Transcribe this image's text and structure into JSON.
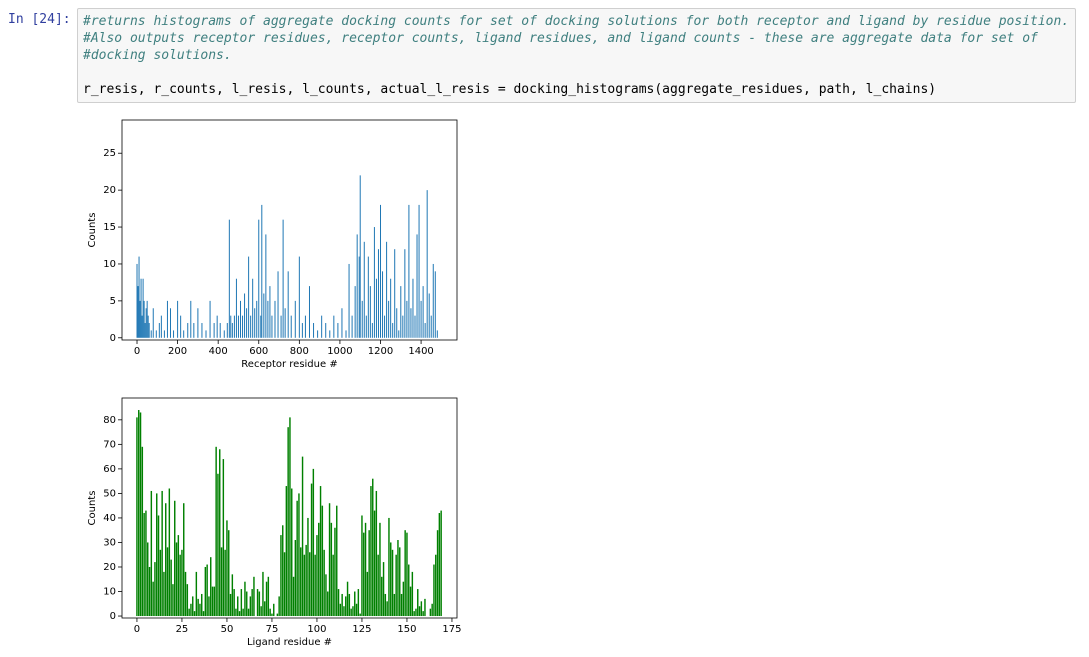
{
  "prompt": "In [24]:",
  "code": {
    "comments": [
      "#returns histograms of aggregate docking counts for set of docking solutions for both receptor and ligand by residue position.",
      "#Also outputs receptor residues, receptor counts, ligand residues, and ligand counts - these are aggregate data for set of",
      "#docking solutions."
    ],
    "statement": "r_resis, r_counts, l_resis, l_counts, actual_l_resis = docking_histograms(aggregate_residues, path, l_chains)"
  },
  "chart_data": [
    {
      "type": "bar",
      "xlabel": "Receptor residue #",
      "ylabel": "Counts",
      "color": "#1f77b4",
      "x": [
        0,
        5,
        10,
        15,
        20,
        25,
        30,
        35,
        40,
        45,
        50,
        55,
        60,
        70,
        80,
        95,
        110,
        120,
        135,
        150,
        165,
        180,
        200,
        215,
        230,
        250,
        265,
        280,
        300,
        320,
        340,
        360,
        380,
        395,
        410,
        430,
        445,
        455,
        462,
        470,
        480,
        490,
        500,
        510,
        520,
        530,
        540,
        550,
        560,
        570,
        580,
        590,
        600,
        610,
        615,
        625,
        635,
        645,
        655,
        665,
        680,
        695,
        710,
        720,
        730,
        745,
        760,
        780,
        800,
        815,
        830,
        850,
        870,
        890,
        910,
        930,
        950,
        970,
        990,
        1010,
        1030,
        1045,
        1060,
        1075,
        1085,
        1095,
        1100,
        1110,
        1120,
        1130,
        1140,
        1150,
        1160,
        1170,
        1180,
        1190,
        1200,
        1210,
        1220,
        1230,
        1240,
        1250,
        1260,
        1270,
        1280,
        1290,
        1300,
        1310,
        1320,
        1330,
        1340,
        1350,
        1360,
        1370,
        1380,
        1390,
        1400,
        1410,
        1420,
        1430,
        1440,
        1450,
        1460,
        1470,
        1480
      ],
      "values": [
        10,
        7,
        11,
        5,
        8,
        3,
        8,
        5,
        2,
        4,
        5,
        3,
        2,
        1,
        4,
        1,
        2,
        3,
        1,
        5,
        4,
        1,
        5,
        3,
        1,
        2,
        5,
        2,
        4,
        2,
        1,
        5,
        2,
        3,
        2,
        1,
        2,
        16,
        3,
        2,
        3,
        8,
        3,
        5,
        3,
        6,
        4,
        11,
        3,
        8,
        4,
        5,
        16,
        3,
        18,
        6,
        14,
        5,
        7,
        3,
        5,
        9,
        3,
        16,
        4,
        9,
        3,
        5,
        11,
        2,
        3,
        7,
        2,
        1,
        3,
        2,
        1,
        3,
        2,
        4,
        1,
        10,
        3,
        7,
        14,
        11,
        22,
        5,
        13,
        3,
        11,
        7,
        2,
        15,
        8,
        12,
        18,
        9,
        3,
        13,
        5,
        8,
        2,
        12,
        4,
        1,
        7,
        3,
        12,
        5,
        18,
        4,
        8,
        3,
        14,
        18,
        5,
        7,
        2,
        20,
        6,
        3,
        10,
        9,
        1
      ],
      "xlim": [
        -74,
        1577
      ],
      "ylim": [
        -0.3,
        29.5
      ],
      "xticks": [
        0,
        200,
        400,
        600,
        800,
        1000,
        1200,
        1400
      ],
      "yticks": [
        0,
        5,
        10,
        15,
        20,
        25
      ]
    },
    {
      "type": "bar",
      "xlabel": "Ligand residue #",
      "ylabel": "Counts",
      "color": "#008000",
      "x": [
        0,
        1,
        2,
        3,
        4,
        5,
        6,
        7,
        8,
        9,
        10,
        11,
        12,
        13,
        14,
        15,
        16,
        17,
        18,
        19,
        20,
        21,
        22,
        23,
        24,
        25,
        26,
        27,
        28,
        29,
        30,
        31,
        32,
        33,
        34,
        35,
        36,
        37,
        38,
        39,
        40,
        41,
        42,
        43,
        44,
        45,
        46,
        47,
        48,
        49,
        50,
        51,
        52,
        53,
        54,
        55,
        56,
        57,
        58,
        59,
        60,
        61,
        62,
        63,
        64,
        65,
        66,
        67,
        68,
        69,
        70,
        71,
        72,
        73,
        74,
        75,
        76,
        77,
        78,
        79,
        80,
        81,
        82,
        83,
        84,
        85,
        86,
        87,
        88,
        89,
        90,
        91,
        92,
        93,
        94,
        95,
        96,
        97,
        98,
        99,
        100,
        101,
        102,
        103,
        104,
        105,
        106,
        107,
        108,
        109,
        110,
        111,
        112,
        113,
        114,
        115,
        116,
        117,
        118,
        119,
        120,
        121,
        122,
        123,
        124,
        125,
        126,
        127,
        128,
        129,
        130,
        131,
        132,
        133,
        134,
        135,
        136,
        137,
        138,
        139,
        140,
        141,
        142,
        143,
        144,
        145,
        146,
        147,
        148,
        149,
        150,
        151,
        152,
        153,
        154,
        155,
        156,
        157,
        158,
        159,
        160,
        161,
        162,
        163,
        164,
        165,
        166,
        167,
        168,
        169
      ],
      "values": [
        81,
        84,
        83,
        69,
        42,
        43,
        30,
        20,
        51,
        14,
        22,
        50,
        41,
        27,
        51,
        18,
        46,
        28,
        52,
        23,
        13,
        47,
        30,
        33,
        25,
        27,
        46,
        18,
        13,
        3,
        5,
        8,
        2,
        18,
        7,
        5,
        9,
        2,
        20,
        21,
        8,
        24,
        12,
        12,
        69,
        58,
        68,
        28,
        64,
        27,
        39,
        35,
        9,
        17,
        11,
        3,
        8,
        2,
        11,
        3,
        14,
        10,
        3,
        8,
        11,
        16,
        0,
        11,
        10,
        4,
        18,
        6,
        14,
        16,
        3,
        1,
        5,
        0,
        1,
        8,
        33,
        37,
        26,
        53,
        77,
        81,
        52,
        16,
        31,
        47,
        50,
        28,
        65,
        25,
        29,
        40,
        26,
        54,
        60,
        25,
        33,
        38,
        53,
        45,
        27,
        17,
        10,
        46,
        38,
        25,
        36,
        45,
        11,
        5,
        9,
        4,
        8,
        14,
        9,
        3,
        4,
        10,
        5,
        11,
        1,
        41,
        34,
        38,
        18,
        35,
        53,
        56,
        43,
        51,
        25,
        38,
        16,
        22,
        9,
        6,
        40,
        30,
        27,
        9,
        25,
        31,
        28,
        9,
        14,
        35,
        34,
        21,
        12,
        18,
        2,
        3,
        11,
        4,
        6,
        2,
        7,
        0,
        0,
        3,
        5,
        21,
        25,
        35,
        42,
        43
      ],
      "xlim": [
        -8.3,
        177.8
      ],
      "ylim": [
        -0.8,
        88.9
      ],
      "xticks": [
        0,
        25,
        50,
        75,
        100,
        125,
        150,
        175
      ],
      "yticks": [
        0,
        10,
        20,
        30,
        40,
        50,
        60,
        70,
        80
      ]
    }
  ]
}
